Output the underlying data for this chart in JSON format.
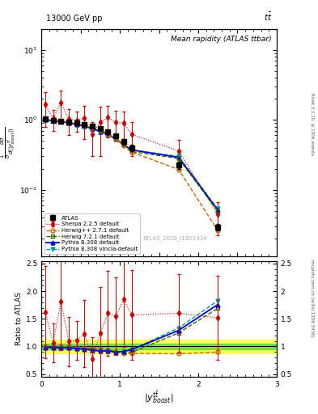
{
  "title_left": "13000 GeV pp",
  "title_right": "tt̅",
  "plot_title": "Mean rapidity (ATLAS ttbar)",
  "watermark": "ATLAS_2020_I1801434",
  "right_label_top": "Rivet 3.1.10, ≥ 100k events",
  "right_label_bottom": "mcplots.cern.ch [arXiv:1306.3436]",
  "ylabel_top": "dσ/d(|yᵗᵗ̅_{boost}|)",
  "ylabel_bottom": "Ratio to ATLAS",
  "xlabel": "|y^{tt}_{boost}|",
  "x_centers": [
    0.05,
    0.15,
    0.25,
    0.35,
    0.45,
    0.55,
    0.65,
    0.75,
    0.85,
    0.95,
    1.05,
    1.15,
    1.75,
    2.25
  ],
  "atlas_y": [
    1.02,
    0.99,
    0.965,
    0.935,
    0.895,
    0.855,
    0.805,
    0.745,
    0.675,
    0.595,
    0.485,
    0.395,
    0.225,
    0.029
  ],
  "atlas_yerr": [
    0.03,
    0.025,
    0.025,
    0.025,
    0.025,
    0.025,
    0.025,
    0.03,
    0.03,
    0.03,
    0.04,
    0.04,
    0.025,
    0.003
  ],
  "herwig271_y": [
    1.02,
    0.99,
    0.965,
    0.935,
    0.885,
    0.835,
    0.775,
    0.715,
    0.625,
    0.535,
    0.425,
    0.345,
    0.195,
    0.026
  ],
  "herwig721_y": [
    1.01,
    0.98,
    0.952,
    0.921,
    0.872,
    0.822,
    0.771,
    0.701,
    0.631,
    0.541,
    0.441,
    0.351,
    0.28,
    0.049
  ],
  "pythia8_y": [
    1.0,
    0.972,
    0.942,
    0.911,
    0.861,
    0.811,
    0.751,
    0.681,
    0.621,
    0.531,
    0.441,
    0.371,
    0.29,
    0.051
  ],
  "pythia8v_y": [
    1.0,
    0.972,
    0.942,
    0.911,
    0.861,
    0.811,
    0.751,
    0.681,
    0.621,
    0.531,
    0.441,
    0.371,
    0.3,
    0.053
  ],
  "sherpa_y": [
    1.65,
    1.05,
    1.75,
    1.02,
    0.99,
    1.05,
    0.62,
    0.92,
    1.08,
    0.92,
    0.9,
    0.62,
    0.36,
    0.044
  ],
  "sherpa_yerr": [
    0.85,
    0.35,
    0.85,
    0.42,
    0.32,
    0.52,
    0.32,
    0.62,
    0.52,
    0.42,
    0.42,
    0.32,
    0.16,
    0.022
  ],
  "colors": {
    "atlas": "#000000",
    "herwig271": "#cc6600",
    "herwig721": "#336600",
    "pythia8": "#0000cc",
    "pythia8v": "#009999",
    "sherpa": "#cc0000"
  },
  "band_green_lo": 0.95,
  "band_green_hi": 1.05,
  "band_yellow_lo": 0.88,
  "band_yellow_hi": 1.12,
  "ratio_herwig271": [
    1.0,
    1.0,
    1.0,
    1.0,
    0.989,
    0.977,
    0.963,
    0.959,
    0.926,
    0.899,
    0.876,
    0.873,
    0.867,
    0.897
  ],
  "ratio_herwig721": [
    0.99,
    0.99,
    0.987,
    0.985,
    0.975,
    0.962,
    0.958,
    0.941,
    0.934,
    0.909,
    0.91,
    0.889,
    1.244,
    1.69
  ],
  "ratio_pythia8": [
    0.98,
    0.981,
    0.976,
    0.974,
    0.962,
    0.949,
    0.933,
    0.914,
    0.919,
    0.893,
    0.91,
    0.94,
    1.289,
    1.759
  ],
  "ratio_pythia8v": [
    0.98,
    0.981,
    0.976,
    0.974,
    0.962,
    0.949,
    0.933,
    0.914,
    0.919,
    0.893,
    0.91,
    0.94,
    1.333,
    1.828
  ],
  "ratio_sherpa": [
    1.62,
    1.06,
    1.81,
    1.09,
    1.106,
    1.228,
    0.77,
    1.236,
    1.6,
    1.546,
    1.856,
    1.57,
    1.6,
    1.517
  ],
  "ratio_sherpa_err": [
    0.84,
    0.35,
    0.88,
    0.45,
    0.356,
    0.608,
    0.398,
    0.835,
    0.77,
    0.706,
    0.867,
    0.81,
    0.711,
    0.759
  ],
  "xlim": [
    0,
    3
  ],
  "ylim_top_lo": 0.011,
  "ylim_top_hi": 20,
  "ylim_bottom_lo": 0.45,
  "ylim_bottom_hi": 2.55
}
